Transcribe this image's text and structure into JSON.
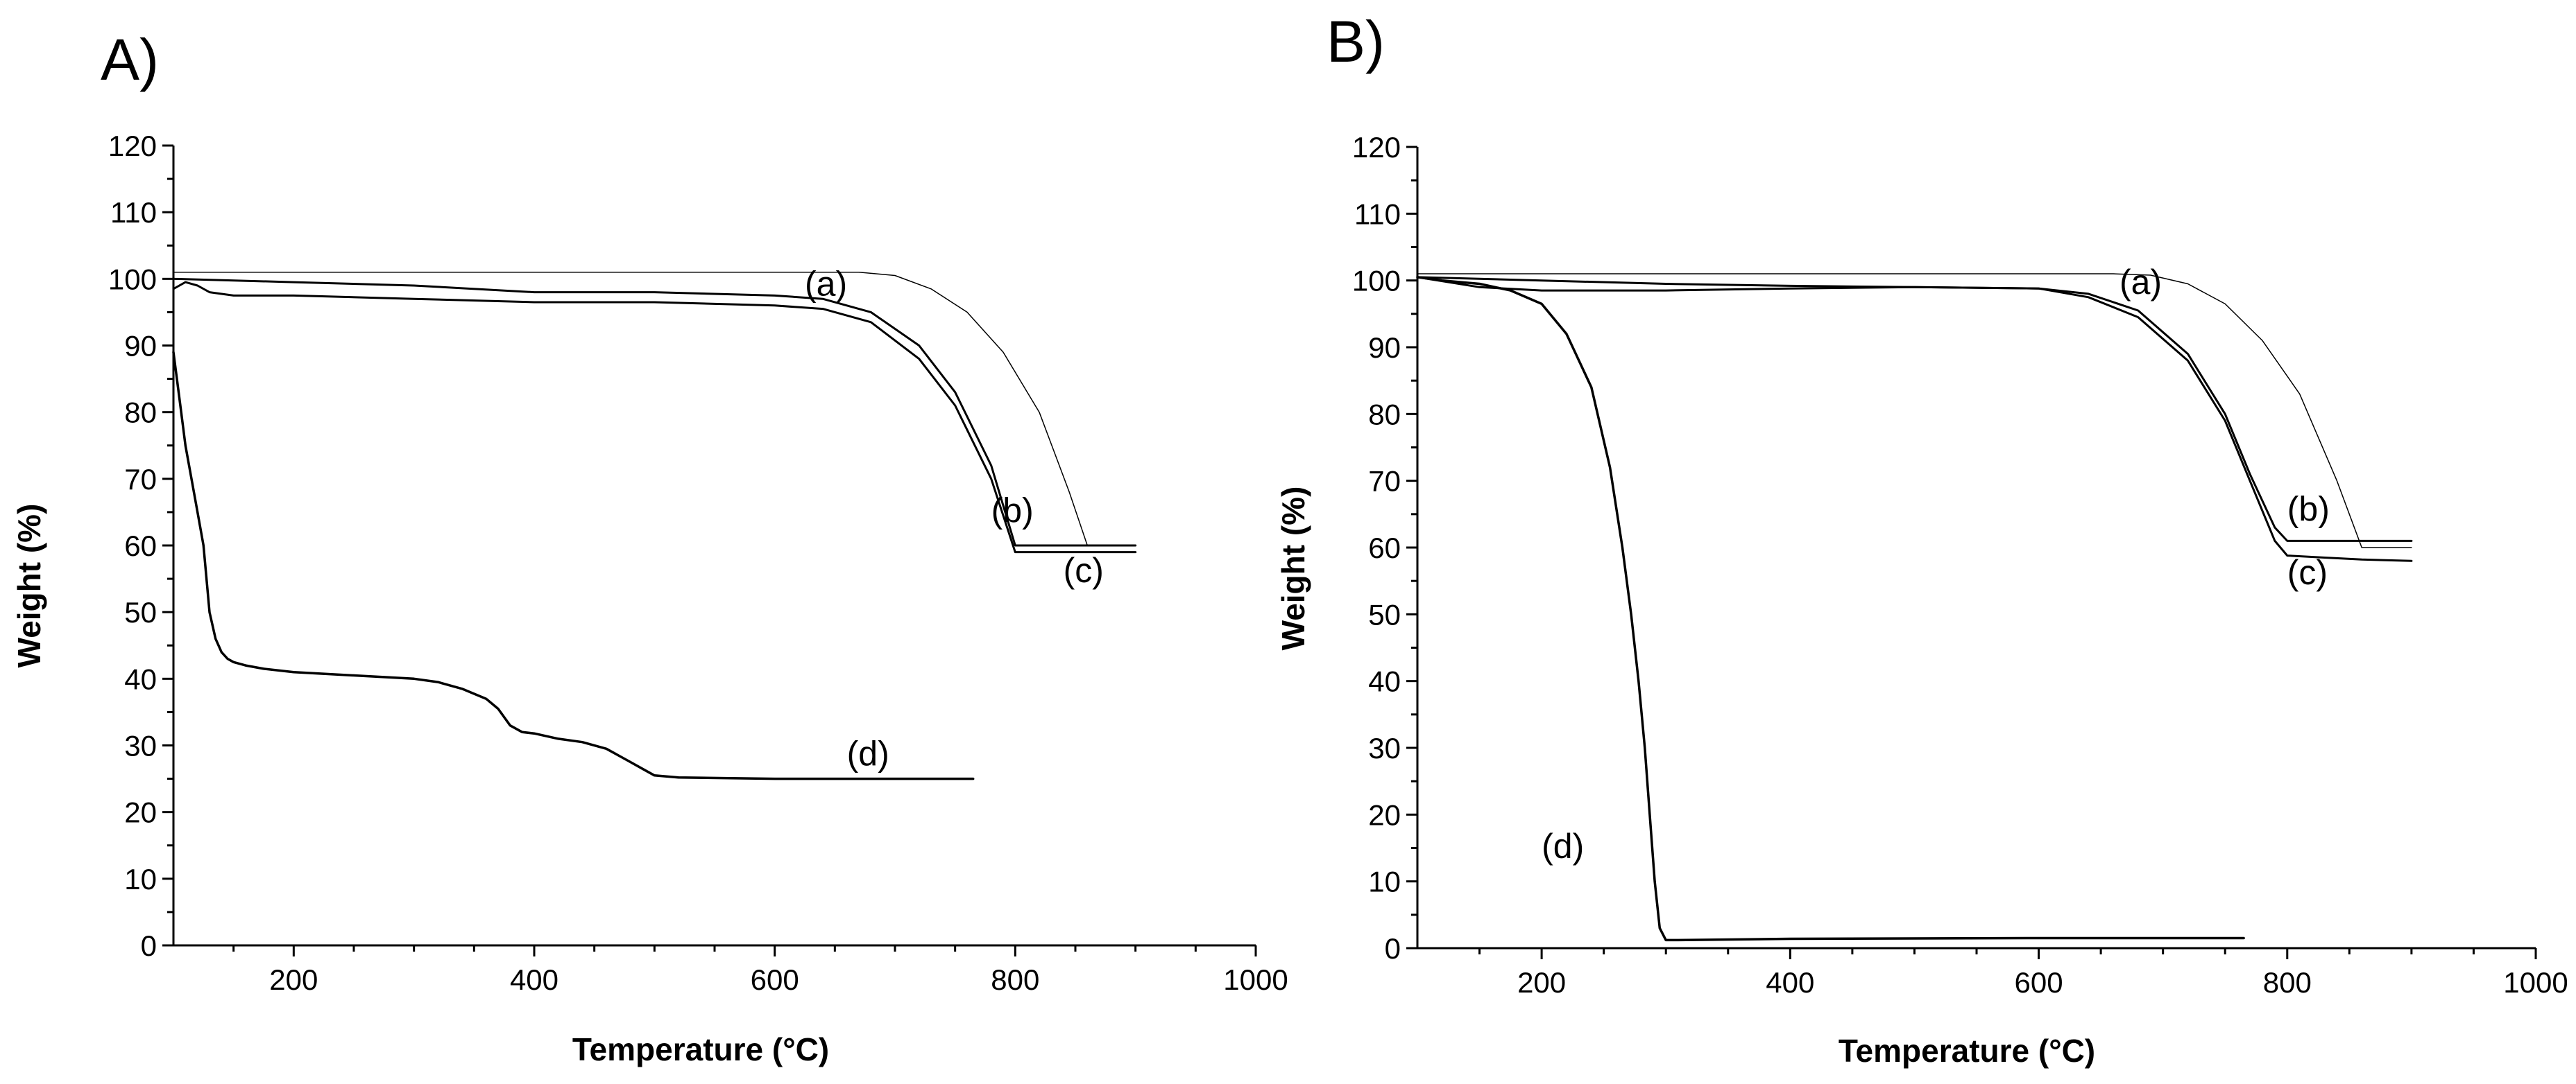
{
  "chart_data": [
    {
      "type": "line",
      "panel": "A)",
      "xlabel": "Temperature (°C)",
      "ylabel": "Weight (%)",
      "xlim": [
        100,
        1000
      ],
      "ylim": [
        0,
        120
      ],
      "x_ticks": [
        200,
        400,
        600,
        800,
        1000
      ],
      "y_ticks": [
        0,
        10,
        20,
        30,
        40,
        50,
        60,
        70,
        80,
        90,
        100,
        110,
        120
      ],
      "grid": false,
      "series": [
        {
          "name": "(a)",
          "label_at": [
            625,
            97.5
          ],
          "width": 1.5,
          "x": [
            100,
            300,
            500,
            670,
            700,
            730,
            760,
            790,
            820,
            845,
            860,
            880,
            900
          ],
          "y": [
            101,
            101,
            101,
            101,
            100.5,
            98.5,
            95,
            89,
            80,
            68,
            60,
            60,
            60
          ]
        },
        {
          "name": "(b)",
          "label_at": [
            780,
            63.5
          ],
          "width": 3,
          "x": [
            100,
            200,
            300,
            400,
            500,
            600,
            640,
            680,
            720,
            750,
            780,
            800,
            820,
            860,
            900
          ],
          "y": [
            100,
            99.5,
            99,
            98,
            98,
            97.5,
            97,
            95,
            90,
            83,
            72,
            60,
            60,
            60,
            60
          ]
        },
        {
          "name": "(c)",
          "label_at": [
            840,
            54.5
          ],
          "width": 3,
          "x": [
            100,
            110,
            120,
            130,
            150,
            200,
            300,
            400,
            500,
            600,
            640,
            680,
            720,
            750,
            780,
            800,
            820,
            860,
            900
          ],
          "y": [
            98.5,
            99.5,
            99,
            98,
            97.5,
            97.5,
            97,
            96.5,
            96.5,
            96,
            95.5,
            93.5,
            88,
            81,
            70,
            59,
            59,
            59,
            59
          ]
        },
        {
          "name": "(d)",
          "label_at": [
            660,
            27
          ],
          "width": 3.5,
          "x": [
            100,
            105,
            110,
            115,
            120,
            125,
            130,
            135,
            140,
            145,
            150,
            160,
            175,
            200,
            250,
            300,
            320,
            340,
            360,
            370,
            380,
            390,
            400,
            420,
            440,
            460,
            470,
            480,
            490,
            500,
            520,
            600,
            700,
            765
          ],
          "y": [
            89,
            82,
            75,
            70,
            65,
            60,
            50,
            46,
            44,
            43,
            42.5,
            42,
            41.5,
            41,
            40.5,
            40,
            39.5,
            38.5,
            37,
            35.5,
            33,
            32,
            31.8,
            31,
            30.5,
            29.5,
            28.5,
            27.5,
            26.5,
            25.5,
            25.2,
            25,
            25,
            25
          ]
        }
      ]
    },
    {
      "type": "line",
      "panel": "B)",
      "xlabel": "Temperature (°C)",
      "ylabel": "Weight (%)",
      "xlim": [
        100,
        1000
      ],
      "ylim": [
        0,
        120
      ],
      "x_ticks": [
        200,
        400,
        600,
        800,
        1000
      ],
      "y_ticks": [
        0,
        10,
        20,
        30,
        40,
        50,
        60,
        70,
        80,
        90,
        100,
        110,
        120
      ],
      "grid": false,
      "series": [
        {
          "name": "(a)",
          "label_at": [
            665,
            98
          ],
          "width": 1.5,
          "x": [
            100,
            300,
            500,
            660,
            690,
            720,
            750,
            780,
            810,
            840,
            860,
            880,
            900
          ],
          "y": [
            101,
            101,
            101,
            101,
            100.8,
            99.5,
            96.5,
            91,
            83,
            70,
            60,
            60,
            60
          ]
        },
        {
          "name": "(b)",
          "label_at": [
            800,
            64
          ],
          "width": 3,
          "x": [
            100,
            200,
            300,
            400,
            500,
            600,
            640,
            680,
            720,
            750,
            770,
            790,
            800,
            820,
            860,
            900
          ],
          "y": [
            100.5,
            100,
            99.5,
            99.2,
            99,
            98.8,
            98,
            95.5,
            89,
            80,
            71,
            63,
            61,
            61,
            61,
            61
          ]
        },
        {
          "name": "(c)",
          "label_at": [
            800,
            54.5
          ],
          "width": 3,
          "x": [
            100,
            150,
            200,
            300,
            400,
            500,
            600,
            640,
            680,
            720,
            750,
            770,
            790,
            800,
            830,
            860,
            900
          ],
          "y": [
            100.5,
            99,
            98.5,
            98.5,
            98.8,
            99,
            98.8,
            97.5,
            94.5,
            88,
            79,
            70,
            61,
            58.8,
            58.5,
            58.2,
            58
          ]
        },
        {
          "name": "(d)",
          "label_at": [
            200,
            13.5
          ],
          "width": 3.5,
          "x": [
            100,
            120,
            150,
            175,
            200,
            220,
            240,
            255,
            265,
            272,
            278,
            283,
            287,
            291,
            295,
            300,
            310,
            400,
            600,
            765
          ],
          "y": [
            100.5,
            100,
            99.5,
            98.5,
            96.5,
            92,
            84,
            72,
            60,
            50,
            40,
            30,
            20,
            10,
            3,
            1.2,
            1.2,
            1.4,
            1.5,
            1.5
          ]
        }
      ]
    }
  ]
}
